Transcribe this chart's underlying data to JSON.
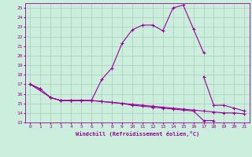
{
  "xlabel": "Windchill (Refroidissement éolien,°C)",
  "bg_color": "#cceedd",
  "line_color": "#990099",
  "grid_color": "#aaccbb",
  "xlim": [
    -0.5,
    21.5
  ],
  "ylim": [
    13,
    25.5
  ],
  "yticks": [
    13,
    14,
    15,
    16,
    17,
    18,
    19,
    20,
    21,
    22,
    23,
    24,
    25
  ],
  "xticks": [
    0,
    1,
    2,
    3,
    4,
    5,
    6,
    7,
    8,
    9,
    10,
    11,
    12,
    13,
    14,
    15,
    16,
    17,
    18,
    19,
    20,
    21
  ],
  "series": [
    {
      "x": [
        0,
        1
      ],
      "y": [
        17.0,
        16.5
      ]
    },
    {
      "x": [
        2,
        3,
        4,
        5,
        6,
        7,
        8,
        9,
        10,
        11,
        12,
        13,
        14,
        15,
        16,
        17
      ],
      "y": [
        15.6,
        15.3,
        15.3,
        15.3,
        15.3,
        17.5,
        18.7,
        21.3,
        22.7,
        23.2,
        23.2,
        22.6,
        25.0,
        25.3,
        22.8,
        20.3
      ]
    },
    {
      "x": [
        17,
        18,
        19,
        20,
        21
      ],
      "y": [
        17.8,
        14.8,
        14.8,
        14.5,
        14.2
      ]
    },
    {
      "x": [
        0,
        1,
        2,
        3,
        4,
        5,
        6,
        7,
        8,
        9,
        10,
        11,
        12,
        13,
        14,
        15,
        16,
        17,
        18,
        19,
        20,
        21
      ],
      "y": [
        17.0,
        16.5,
        15.6,
        15.3,
        15.3,
        15.3,
        15.3,
        15.2,
        15.1,
        15.0,
        14.9,
        14.8,
        14.7,
        14.6,
        14.5,
        14.4,
        14.3,
        14.2,
        14.1,
        14.0,
        14.0,
        13.9
      ]
    },
    {
      "x": [
        0,
        2,
        3,
        4,
        5,
        6,
        7,
        8,
        9,
        10,
        11,
        12,
        13,
        14,
        15,
        16,
        17,
        18
      ],
      "y": [
        17.0,
        15.6,
        15.3,
        15.3,
        15.3,
        15.3,
        15.2,
        15.1,
        15.0,
        14.8,
        14.7,
        14.6,
        14.5,
        14.4,
        14.3,
        14.2,
        13.2,
        13.2
      ]
    }
  ]
}
